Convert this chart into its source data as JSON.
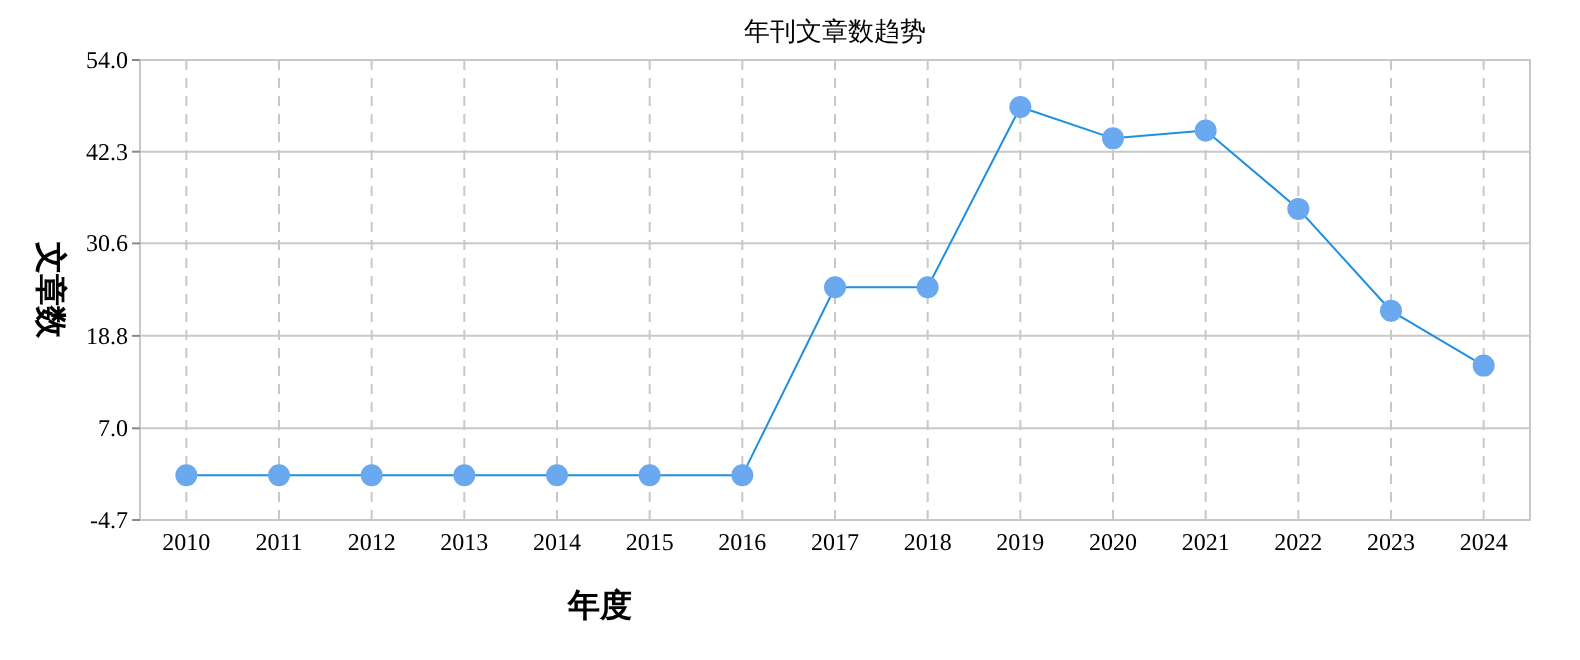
{
  "chart_data": {
    "type": "line",
    "title": "年刊文章数趋势",
    "xlabel": "年度",
    "ylabel": "文章数",
    "categories": [
      "2010",
      "2011",
      "2012",
      "2013",
      "2014",
      "2015",
      "2016",
      "2017",
      "2018",
      "2019",
      "2020",
      "2021",
      "2022",
      "2023",
      "2024"
    ],
    "series": [
      {
        "color": "#1e90e0",
        "values": [
          1,
          1,
          1,
          1,
          1,
          1,
          1,
          25,
          25,
          48,
          44,
          45,
          35,
          22,
          15
        ]
      }
    ],
    "ylim": [
      -4.7,
      54.0
    ],
    "yticks": [
      -4.7,
      {
        "value": 7.0,
        "label": "7.0"
      },
      18.8,
      30.6,
      42.3,
      {
        "value": 54.0,
        "label": "54.0"
      }
    ],
    "grid": true,
    "marker": "circle",
    "line_style": "solid"
  }
}
